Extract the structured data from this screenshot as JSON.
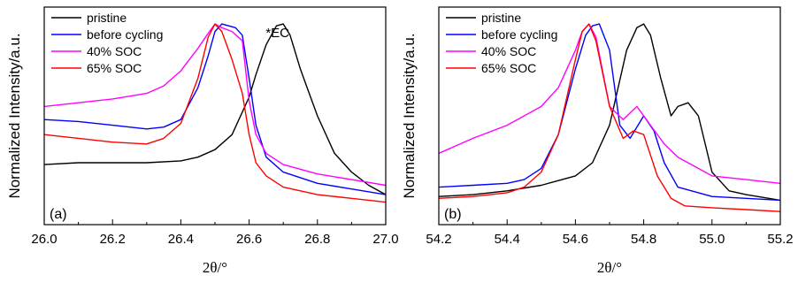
{
  "chart_data": [
    {
      "type": "line",
      "panel_label": "(a)",
      "xlabel": "2θ/°",
      "ylabel": "Normalized Intensity/a.u.",
      "xlim": [
        26.0,
        27.0
      ],
      "x_ticks": [
        "26.0",
        "26.2",
        "26.4",
        "26.6",
        "26.8",
        "27.0"
      ],
      "y_ticks_labeled": false,
      "legend_position": "top-left",
      "annotations": [
        {
          "text": "*EC",
          "x": 26.69
        }
      ],
      "series": [
        {
          "name": "pristine",
          "color": "#000000",
          "x": [
            26.0,
            26.1,
            26.2,
            26.3,
            26.4,
            26.45,
            26.5,
            26.55,
            26.6,
            26.62,
            26.65,
            26.68,
            26.7,
            26.72,
            26.75,
            26.77,
            26.8,
            26.85,
            26.9,
            26.95,
            27.0
          ],
          "y": [
            0.24,
            0.25,
            0.25,
            0.25,
            0.26,
            0.28,
            0.32,
            0.4,
            0.6,
            0.72,
            0.88,
            0.98,
            0.99,
            0.93,
            0.75,
            0.65,
            0.5,
            0.3,
            0.2,
            0.13,
            0.08
          ]
        },
        {
          "name": "before cycling",
          "color": "#0000ff",
          "x": [
            26.0,
            26.1,
            26.2,
            26.3,
            26.35,
            26.4,
            26.45,
            26.48,
            26.5,
            26.52,
            26.54,
            26.56,
            26.58,
            26.6,
            26.62,
            26.65,
            26.7,
            26.8,
            26.9,
            27.0
          ],
          "y": [
            0.48,
            0.47,
            0.45,
            0.43,
            0.44,
            0.48,
            0.65,
            0.82,
            0.95,
            0.99,
            0.98,
            0.97,
            0.93,
            0.7,
            0.45,
            0.28,
            0.2,
            0.14,
            0.11,
            0.08
          ]
        },
        {
          "name": "40% SOC",
          "color": "#ff00ff",
          "x": [
            26.0,
            26.1,
            26.2,
            26.3,
            26.35,
            26.4,
            26.45,
            26.48,
            26.5,
            26.52,
            26.55,
            26.58,
            26.6,
            26.62,
            26.65,
            26.7,
            26.8,
            26.9,
            27.0
          ],
          "y": [
            0.55,
            0.57,
            0.59,
            0.62,
            0.66,
            0.74,
            0.86,
            0.94,
            0.99,
            0.97,
            0.95,
            0.9,
            0.58,
            0.4,
            0.3,
            0.24,
            0.19,
            0.16,
            0.13
          ]
        },
        {
          "name": "65% SOC",
          "color": "#ff0000",
          "x": [
            26.0,
            26.1,
            26.2,
            26.3,
            26.35,
            26.4,
            26.45,
            26.48,
            26.5,
            26.52,
            26.55,
            26.58,
            26.6,
            26.62,
            26.65,
            26.7,
            26.8,
            26.9,
            27.0
          ],
          "y": [
            0.4,
            0.38,
            0.36,
            0.35,
            0.38,
            0.46,
            0.7,
            0.92,
            0.99,
            0.95,
            0.8,
            0.62,
            0.4,
            0.25,
            0.18,
            0.12,
            0.08,
            0.06,
            0.04
          ]
        }
      ]
    },
    {
      "type": "line",
      "panel_label": "(b)",
      "xlabel": "2θ/°",
      "ylabel": "Normalized Intensity/a.u.",
      "xlim": [
        54.2,
        55.2
      ],
      "x_ticks": [
        "54.2",
        "54.4",
        "54.6",
        "54.8",
        "55.0",
        "55.2"
      ],
      "y_ticks_labeled": false,
      "legend_position": "top-left",
      "series": [
        {
          "name": "pristine",
          "color": "#000000",
          "x": [
            54.2,
            54.3,
            54.4,
            54.5,
            54.6,
            54.65,
            54.7,
            54.75,
            54.78,
            54.8,
            54.82,
            54.85,
            54.88,
            54.9,
            54.93,
            54.96,
            55.0,
            55.05,
            55.1,
            55.2
          ],
          "y": [
            0.07,
            0.08,
            0.1,
            0.13,
            0.18,
            0.25,
            0.45,
            0.85,
            0.97,
            0.99,
            0.93,
            0.7,
            0.5,
            0.55,
            0.57,
            0.5,
            0.2,
            0.1,
            0.08,
            0.05
          ]
        },
        {
          "name": "before cycling",
          "color": "#0000ff",
          "x": [
            54.2,
            54.3,
            54.4,
            54.45,
            54.5,
            54.55,
            54.6,
            54.63,
            54.65,
            54.67,
            54.7,
            54.73,
            54.76,
            54.8,
            54.83,
            54.86,
            54.9,
            55.0,
            55.1,
            55.2
          ],
          "y": [
            0.12,
            0.13,
            0.14,
            0.16,
            0.22,
            0.4,
            0.75,
            0.93,
            0.98,
            0.99,
            0.85,
            0.45,
            0.38,
            0.5,
            0.42,
            0.25,
            0.12,
            0.07,
            0.06,
            0.05
          ]
        },
        {
          "name": "40% SOC",
          "color": "#ff00ff",
          "x": [
            54.2,
            54.3,
            54.4,
            54.5,
            54.55,
            54.6,
            54.62,
            54.64,
            54.66,
            54.7,
            54.74,
            54.78,
            54.82,
            54.86,
            54.9,
            55.0,
            55.1,
            55.2
          ],
          "y": [
            0.3,
            0.38,
            0.45,
            0.55,
            0.65,
            0.85,
            0.95,
            0.99,
            0.92,
            0.55,
            0.48,
            0.55,
            0.45,
            0.35,
            0.28,
            0.18,
            0.16,
            0.14
          ]
        },
        {
          "name": "65% SOC",
          "color": "#ff0000",
          "x": [
            54.2,
            54.3,
            54.4,
            54.45,
            54.5,
            54.55,
            54.6,
            54.62,
            54.64,
            54.66,
            54.7,
            54.74,
            54.77,
            54.8,
            54.84,
            54.88,
            54.92,
            55.0,
            55.1,
            55.2
          ],
          "y": [
            0.06,
            0.07,
            0.09,
            0.12,
            0.2,
            0.4,
            0.8,
            0.95,
            0.99,
            0.9,
            0.55,
            0.38,
            0.42,
            0.4,
            0.18,
            0.06,
            0.02,
            0.01,
            0.0,
            -0.01
          ]
        }
      ]
    }
  ]
}
